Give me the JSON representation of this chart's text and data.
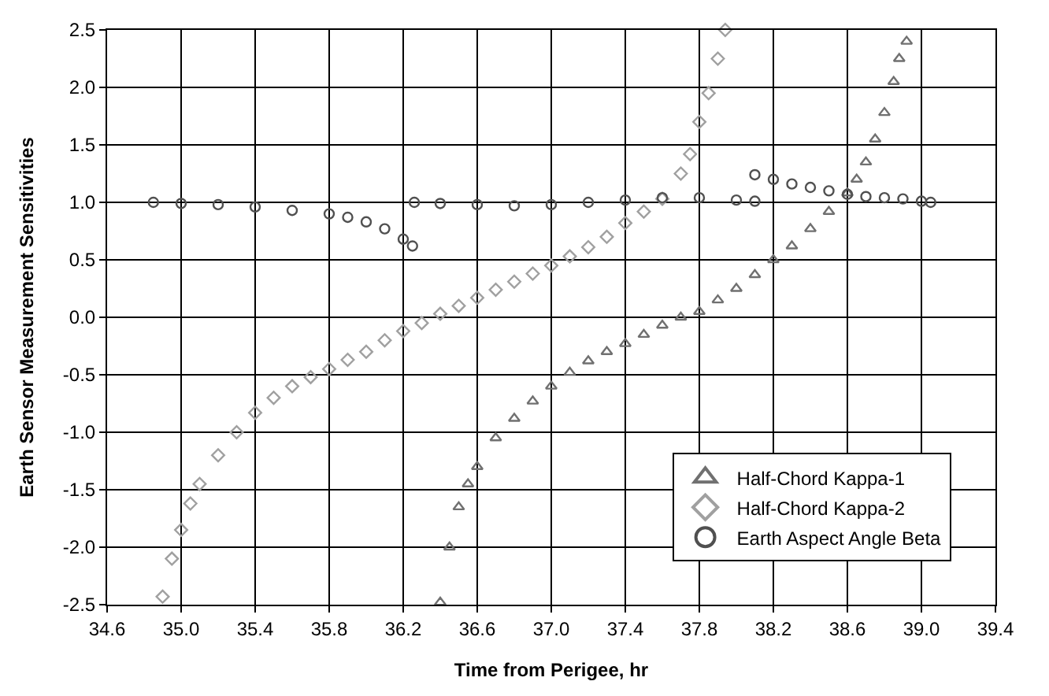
{
  "chart_data": {
    "type": "scatter",
    "xlabel": "Time from Perigee, hr",
    "ylabel": "Earth Sensor Measurement Sensitivities",
    "xlim": [
      34.6,
      39.4
    ],
    "xticks": [
      {
        "value": 34.6,
        "label": "34.6"
      },
      {
        "value": 35.0,
        "label": "35.0"
      },
      {
        "value": 35.4,
        "label": "35.4"
      },
      {
        "value": 35.8,
        "label": "35.8"
      },
      {
        "value": 36.2,
        "label": "36.2"
      },
      {
        "value": 36.6,
        "label": "36.6"
      },
      {
        "value": 37.0,
        "label": "37.0"
      },
      {
        "value": 37.4,
        "label": "37.4"
      },
      {
        "value": 37.8,
        "label": "37.8"
      },
      {
        "value": 38.2,
        "label": "38.2"
      },
      {
        "value": 38.6,
        "label": "38.6"
      },
      {
        "value": 39.0,
        "label": "39.0"
      },
      {
        "value": 39.4,
        "label": "39.4"
      }
    ],
    "ylim": [
      -2.5,
      2.5
    ],
    "yticks": [
      {
        "value": -2.5,
        "label": "-2.5"
      },
      {
        "value": -2.0,
        "label": "-2.0"
      },
      {
        "value": -1.5,
        "label": "-1.5"
      },
      {
        "value": -1.0,
        "label": "-1.0"
      },
      {
        "value": -0.5,
        "label": "-0.5"
      },
      {
        "value": 0,
        "label": "0.0"
      },
      {
        "value": 0.5,
        "label": "0.5"
      },
      {
        "value": 1.0,
        "label": "1.0"
      },
      {
        "value": 1.5,
        "label": "1.5"
      },
      {
        "value": 2.0,
        "label": "2.0"
      },
      {
        "value": 2.5,
        "label": "2.5"
      }
    ],
    "grid": true,
    "legend": "bottom right",
    "series": [
      {
        "name": "Half-Chord Kappa-1",
        "color": "#707070",
        "marker": "triangle",
        "x": [
          36.4,
          36.45,
          36.5,
          36.55,
          36.6,
          36.7,
          36.8,
          36.9,
          37.0,
          37.1,
          37.2,
          37.3,
          37.4,
          37.5,
          37.6,
          37.7,
          37.8,
          37.9,
          38.0,
          38.1,
          38.2,
          38.3,
          38.4,
          38.5,
          38.6,
          38.65,
          38.7,
          38.75,
          38.8,
          38.85,
          38.88,
          38.92
        ],
        "values": [
          -2.48,
          -2.0,
          -1.65,
          -1.45,
          -1.3,
          -1.05,
          -0.88,
          -0.73,
          -0.6,
          -0.48,
          -0.38,
          -0.3,
          -0.23,
          -0.15,
          -0.07,
          0.0,
          0.05,
          0.15,
          0.25,
          0.37,
          0.5,
          0.62,
          0.77,
          0.92,
          1.08,
          1.2,
          1.35,
          1.55,
          1.78,
          2.05,
          2.25,
          2.4
        ]
      },
      {
        "name": "Half-Chord Kappa-2",
        "color": "#a0a0a0",
        "marker": "diamond",
        "x": [
          34.9,
          34.95,
          35.0,
          35.05,
          35.1,
          35.2,
          35.3,
          35.4,
          35.5,
          35.6,
          35.7,
          35.8,
          35.9,
          36.0,
          36.1,
          36.2,
          36.3,
          36.4,
          36.5,
          36.6,
          36.7,
          36.8,
          36.9,
          37.0,
          37.1,
          37.2,
          37.3,
          37.4,
          37.5,
          37.6,
          37.7,
          37.75,
          37.8,
          37.85,
          37.9,
          37.94
        ],
        "values": [
          -2.43,
          -2.1,
          -1.85,
          -1.62,
          -1.45,
          -1.2,
          -1.0,
          -0.83,
          -0.7,
          -0.6,
          -0.52,
          -0.45,
          -0.37,
          -0.3,
          -0.2,
          -0.12,
          -0.05,
          0.03,
          0.1,
          0.17,
          0.24,
          0.31,
          0.38,
          0.45,
          0.53,
          0.61,
          0.7,
          0.82,
          0.92,
          1.03,
          1.25,
          1.42,
          1.7,
          1.95,
          2.25,
          2.5
        ]
      },
      {
        "name": "Earth Aspect Angle Beta",
        "color": "#505050",
        "marker": "circle",
        "x": [
          34.85,
          35.0,
          35.2,
          35.4,
          35.6,
          35.8,
          35.9,
          36.0,
          36.1,
          36.2,
          36.25,
          36.26,
          36.4,
          36.6,
          36.8,
          37.0,
          37.2,
          37.4,
          37.6,
          37.8,
          38.0,
          38.1,
          38.1,
          38.2,
          38.3,
          38.4,
          38.5,
          38.6,
          38.7,
          38.8,
          38.9,
          39.0,
          39.05
        ],
        "values": [
          1.0,
          0.99,
          0.98,
          0.96,
          0.93,
          0.9,
          0.87,
          0.83,
          0.77,
          0.68,
          0.62,
          1.0,
          0.99,
          0.98,
          0.97,
          0.98,
          1.0,
          1.02,
          1.04,
          1.04,
          1.02,
          1.01,
          1.24,
          1.2,
          1.16,
          1.13,
          1.1,
          1.07,
          1.05,
          1.04,
          1.03,
          1.01,
          1.0
        ]
      }
    ]
  }
}
